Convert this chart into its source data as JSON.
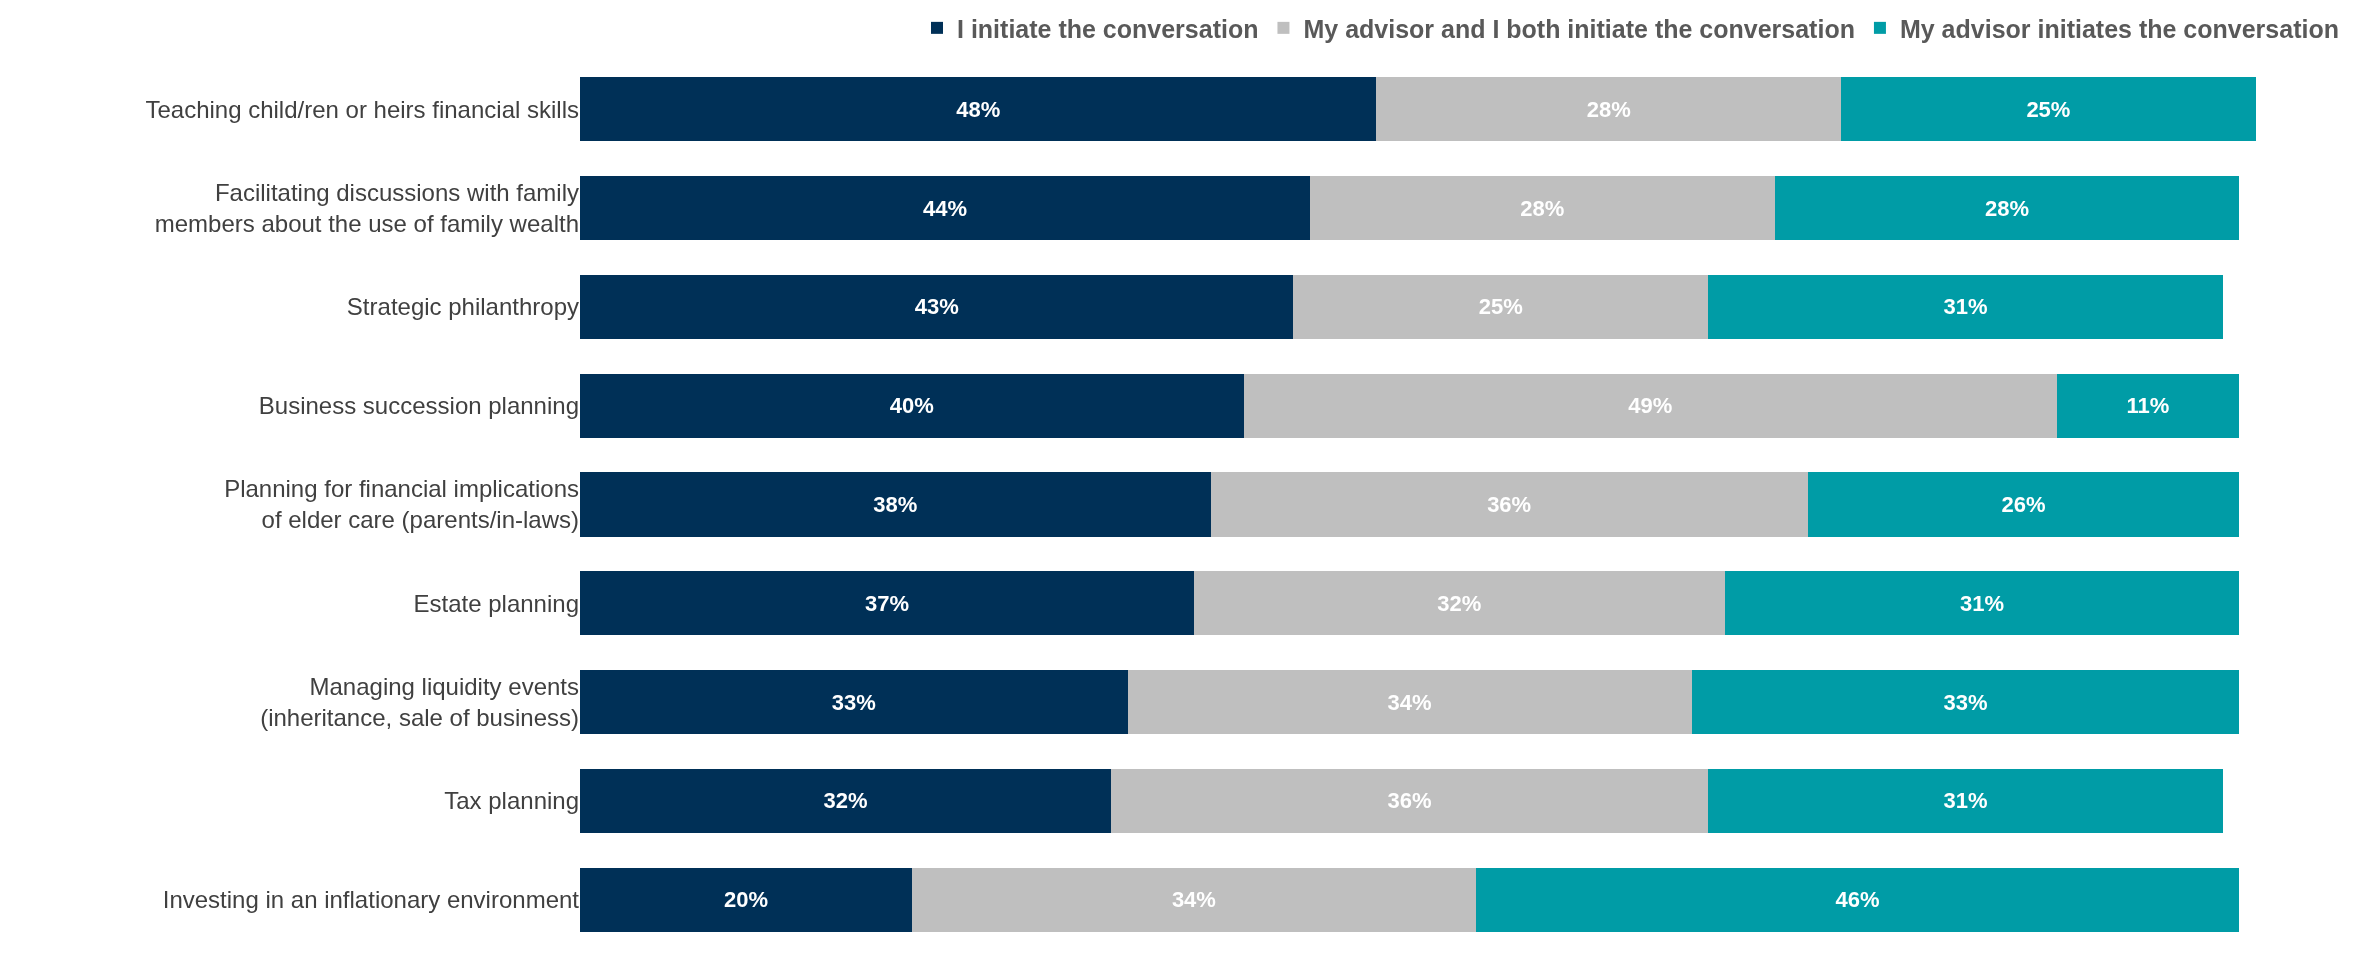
{
  "chart_data": {
    "type": "bar",
    "orientation": "horizontal",
    "stacked": true,
    "legend": "top",
    "grid": false,
    "tick_labels": "y",
    "categories": [
      "Teaching child/ren or heirs financial skills",
      "Facilitating discussions with family\nmembers about the use of family wealth",
      "Strategic philanthropy",
      "Business succession planning",
      "Planning for financial implications\nof elder care (parents/in-laws)",
      "Estate planning",
      "Managing liquidity events\n(inheritance, sale of business)",
      "Tax planning",
      "Investing in an inflationary environment"
    ],
    "series": [
      {
        "name": "I initiate the conversation",
        "color": "#003057",
        "values": [
          48,
          44,
          43,
          40,
          38,
          37,
          33,
          32,
          20
        ],
        "value_labels": [
          "48%",
          "44%",
          "43%",
          "40%",
          "38%",
          "37%",
          "33%",
          "32%",
          "20%"
        ]
      },
      {
        "name": "My advisor and I both initiate the conversation",
        "color": "#bfbfbf",
        "values": [
          28,
          28,
          25,
          49,
          36,
          32,
          34,
          36,
          34
        ],
        "value_labels": [
          "28%",
          "28%",
          "25%",
          "49%",
          "36%",
          "32%",
          "34%",
          "36%",
          "34%"
        ]
      },
      {
        "name": "My advisor initiates the conversation",
        "color": "#009ca6",
        "values": [
          25,
          28,
          31,
          11,
          26,
          31,
          33,
          31,
          46
        ],
        "value_labels": [
          "25%",
          "28%",
          "31%",
          "11%",
          "26%",
          "31%",
          "33%",
          "31%",
          "46%"
        ]
      }
    ]
  }
}
